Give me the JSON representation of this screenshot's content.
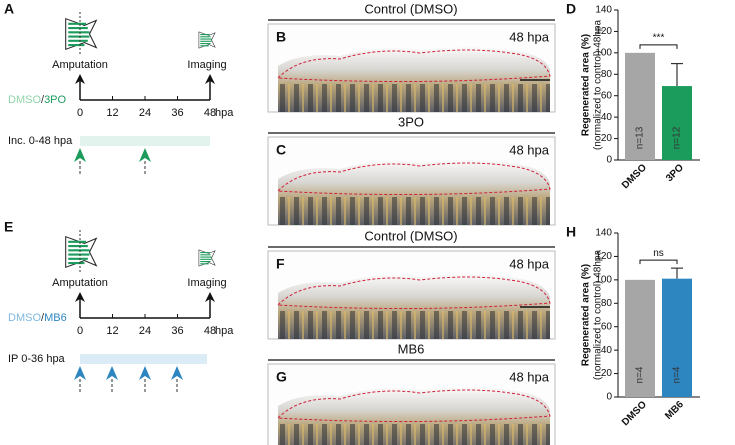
{
  "panels": [
    {
      "letter": "A",
      "amputation": "Amputation",
      "imaging": "Imaging",
      "ticks": [
        "0",
        "12",
        "24",
        "36",
        "48"
      ],
      "unit": "hpa",
      "control": "DMSO",
      "separator": "/",
      "drug": "3PO",
      "treatment": "Inc. 0-48 hpa"
    },
    {
      "letter": "E",
      "amputation": "Amputation",
      "imaging": "Imaging",
      "ticks": [
        "0",
        "12",
        "24",
        "36",
        "48"
      ],
      "unit": "hpa",
      "control": "DMSO",
      "separator": "/",
      "drug": "MB6",
      "treatment": "IP 0-36 hpa"
    }
  ],
  "photos": [
    {
      "letter": "B",
      "header": "Control (DMSO)",
      "time": "48 hpa"
    },
    {
      "letter": "C",
      "header": "3PO",
      "time": "48 hpa"
    },
    {
      "letter": "F",
      "header": "Control (DMSO)",
      "time": "48 hpa"
    },
    {
      "letter": "G",
      "header": "MB6",
      "time": "48 hpa"
    }
  ],
  "chart_data": [
    {
      "type": "bar",
      "letter": "D",
      "ylabel": [
        "Regenerated area (%)",
        "(normalized to control) 48hpa"
      ],
      "categories": [
        "DMSO",
        "3PO"
      ],
      "values": [
        100,
        69
      ],
      "errors": [
        0,
        21
      ],
      "n_labels": [
        "n=13",
        "n=12"
      ],
      "colors": [
        "#a6a6a6",
        "#1b9c5c"
      ],
      "significance": "***",
      "ylim": [
        0,
        140
      ],
      "yticks": [
        0,
        20,
        40,
        60,
        80,
        100,
        120,
        140
      ]
    },
    {
      "type": "bar",
      "letter": "H",
      "ylabel": [
        "Regenerated area (%)",
        "(normalized to control) 48hpa"
      ],
      "categories": [
        "DMSO",
        "MB6"
      ],
      "values": [
        100,
        101
      ],
      "errors": [
        0,
        9
      ],
      "n_labels": [
        "n=4",
        "n=4"
      ],
      "colors": [
        "#a6a6a6",
        "#2e86c1"
      ],
      "significance": "ns",
      "ylim": [
        0,
        140
      ],
      "yticks": [
        0,
        20,
        40,
        60,
        80,
        100,
        120,
        140
      ]
    }
  ]
}
